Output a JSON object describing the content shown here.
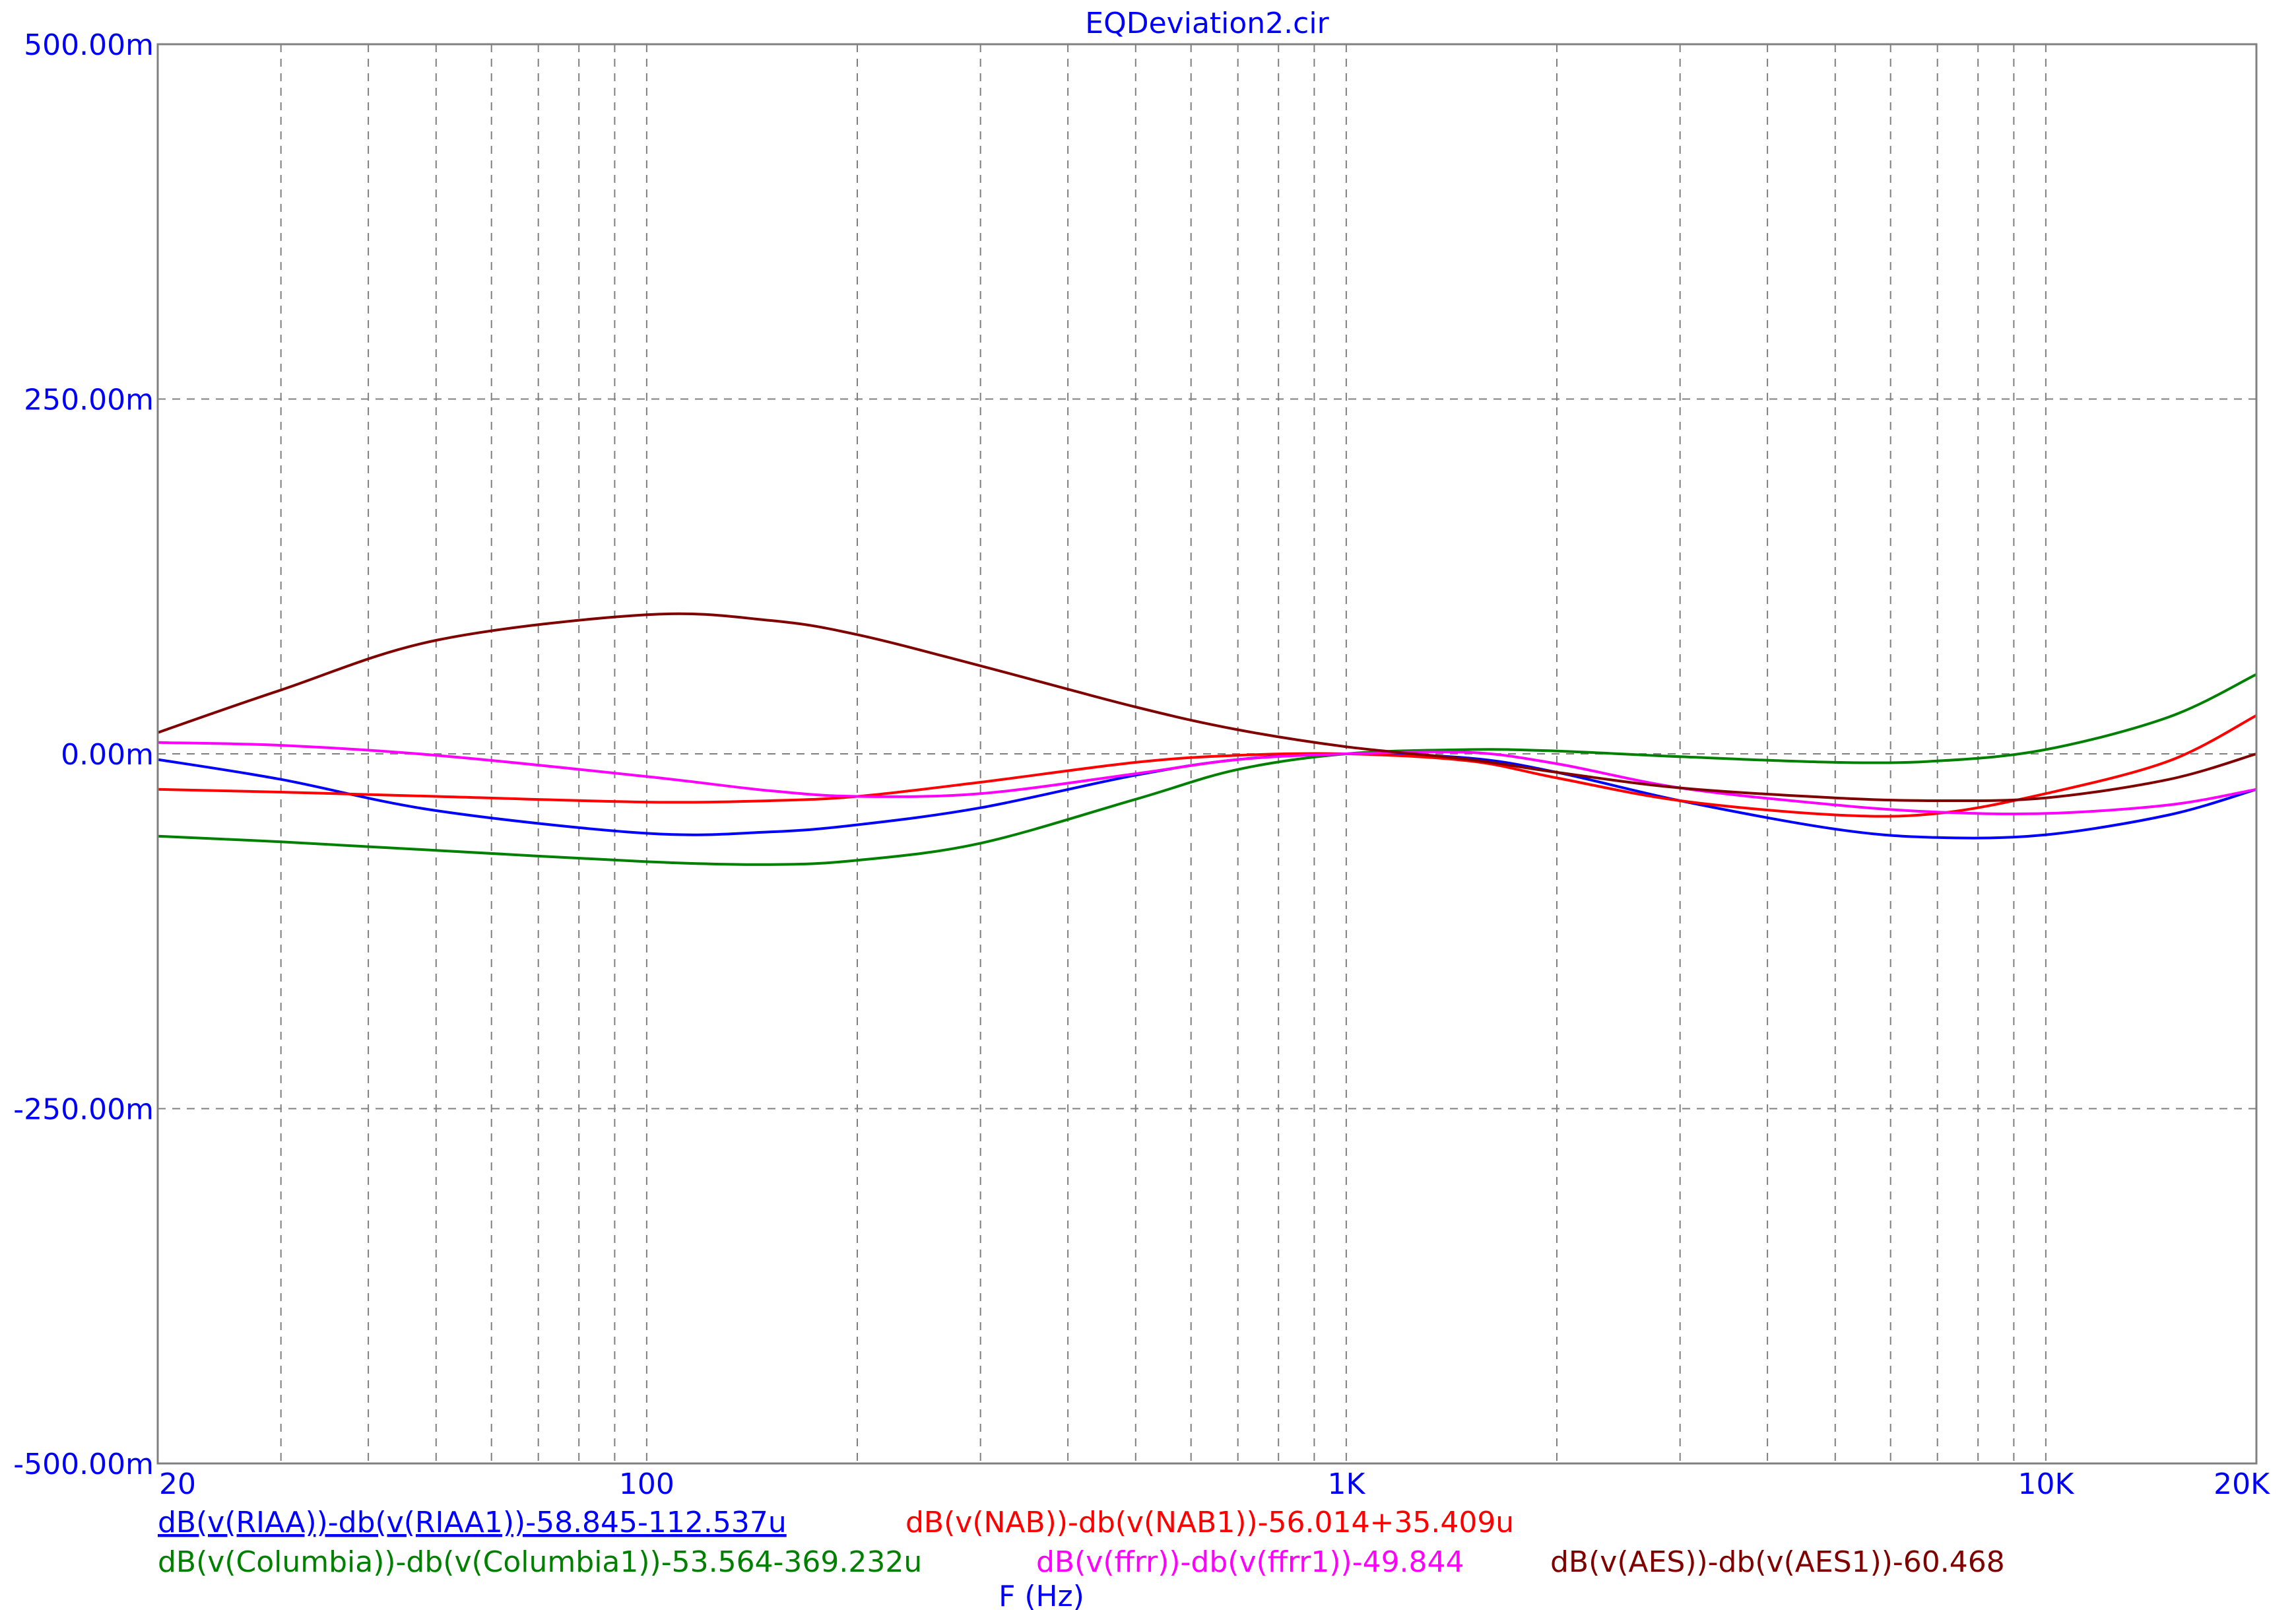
{
  "chart_data": {
    "type": "line",
    "title": "EQDeviation2.cir",
    "xlabel": "F (Hz)",
    "ylabel": "",
    "x_scale": "log",
    "xlim": [
      20,
      20000
    ],
    "ylim": [
      -0.5,
      0.5
    ],
    "grid": true,
    "legend_position": "bottom",
    "x_ticks": [
      {
        "value": 20,
        "label": "20"
      },
      {
        "value": 100,
        "label": "100"
      },
      {
        "value": 1000,
        "label": "1K"
      },
      {
        "value": 10000,
        "label": "10K"
      },
      {
        "value": 20000,
        "label": "20K"
      }
    ],
    "y_ticks": [
      {
        "value": 0.5,
        "label": "500.00m"
      },
      {
        "value": 0.25,
        "label": "250.00m"
      },
      {
        "value": 0.0,
        "label": "0.00m"
      },
      {
        "value": -0.25,
        "label": "-250.00m"
      },
      {
        "value": -0.5,
        "label": "-500.00m"
      }
    ],
    "x": [
      20,
      30,
      50,
      100,
      150,
      200,
      300,
      500,
      700,
      1000,
      1500,
      2000,
      3000,
      5000,
      7000,
      10000,
      15000,
      20000
    ],
    "series": [
      {
        "name": "dB(v(RIAA))-db(v(RIAA1))-58.845-112.537u",
        "color": "#0000ff",
        "values": [
          -0.004,
          -0.018,
          -0.04,
          -0.056,
          -0.055,
          -0.05,
          -0.038,
          -0.015,
          -0.004,
          0.0,
          -0.003,
          -0.013,
          -0.033,
          -0.053,
          -0.059,
          -0.057,
          -0.043,
          -0.025
        ]
      },
      {
        "name": "dB(v(NAB))-db(v(NAB1))-56.014+35.409u",
        "color": "#ff0000",
        "values": [
          -0.025,
          -0.027,
          -0.03,
          -0.034,
          -0.033,
          -0.03,
          -0.02,
          -0.006,
          -0.001,
          0.0,
          -0.005,
          -0.017,
          -0.033,
          -0.043,
          -0.042,
          -0.028,
          -0.005,
          0.027
        ]
      },
      {
        "name": "dB(v(Columbia))-db(v(Columbia1))-53.564-369.232u",
        "color": "#008000",
        "values": [
          -0.058,
          -0.062,
          -0.068,
          -0.076,
          -0.078,
          -0.075,
          -0.063,
          -0.032,
          -0.011,
          0.0,
          0.003,
          0.002,
          -0.002,
          -0.006,
          -0.005,
          0.003,
          0.026,
          0.056
        ]
      },
      {
        "name": "dB(v(ffrr))-db(v(ffrr1))-49.844",
        "color": "#ff00ff",
        "values": [
          0.008,
          0.006,
          -0.001,
          -0.016,
          -0.026,
          -0.03,
          -0.028,
          -0.014,
          -0.004,
          0.0,
          0.001,
          -0.007,
          -0.024,
          -0.036,
          -0.041,
          -0.042,
          -0.036,
          -0.025
        ]
      },
      {
        "name": "dB(v(AES))-db(v(AES1))-60.468",
        "color": "#800000",
        "values": [
          0.015,
          0.045,
          0.08,
          0.098,
          0.094,
          0.084,
          0.062,
          0.033,
          0.017,
          0.005,
          -0.004,
          -0.013,
          -0.024,
          -0.031,
          -0.033,
          -0.031,
          -0.018,
          0.0
        ]
      }
    ]
  }
}
